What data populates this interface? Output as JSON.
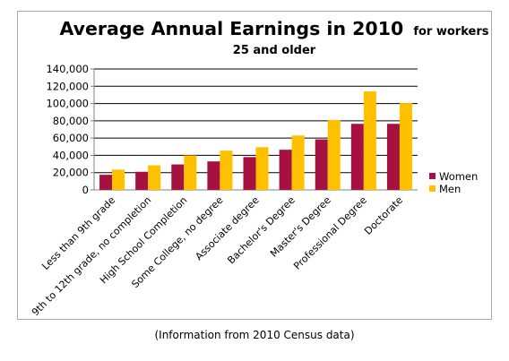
{
  "chart_data": {
    "type": "bar",
    "title": "Average Annual Earnings in 2010",
    "title_suffix": "for workers",
    "subtitle": "25 and older",
    "categories": [
      "Less than 9th grade",
      "9th to 12th grade, no completion",
      "High School Completion",
      "Some College, no degree",
      "Associate degree",
      "Bachelor's Degree",
      "Master's Degree",
      "Professional Degree",
      "Doctorate"
    ],
    "series": [
      {
        "name": "Women",
        "color": "#a5123f",
        "values": [
          17500,
          21000,
          29500,
          33000,
          38000,
          46500,
          58500,
          76500,
          76500
        ]
      },
      {
        "name": "Men",
        "color": "#ffc000",
        "values": [
          23500,
          28500,
          40000,
          45500,
          49500,
          63000,
          81000,
          114000,
          100500
        ]
      }
    ],
    "ylim": [
      0,
      140000
    ],
    "yticks": [
      "0",
      "20,000",
      "40,000",
      "60,000",
      "80,000",
      "100,000",
      "120,000",
      "140,000"
    ],
    "grid": true,
    "legend_position": "right"
  },
  "caption": "(Information from 2010 Census data)"
}
